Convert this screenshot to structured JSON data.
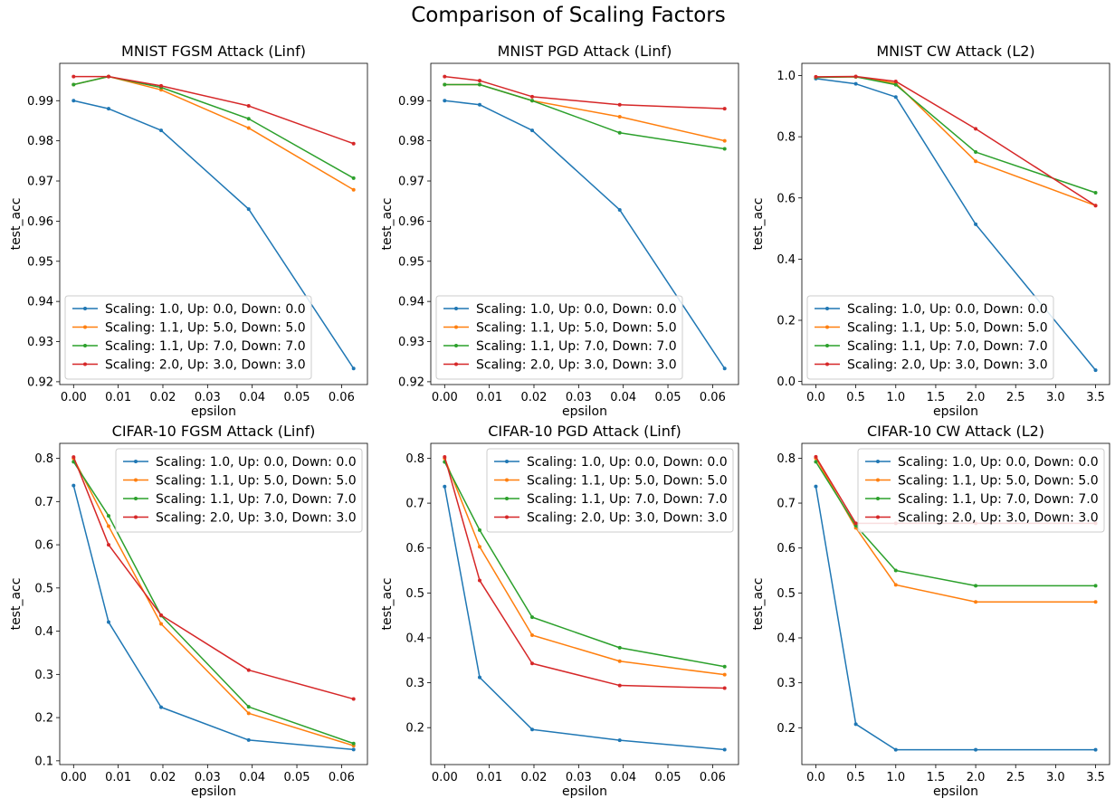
{
  "figure": {
    "title": "Comparison of Scaling Factors"
  },
  "colors": {
    "series": [
      "#1f77b4",
      "#ff7f0e",
      "#2ca02c",
      "#d62728"
    ]
  },
  "chart_data": [
    {
      "type": "line",
      "title": "MNIST FGSM Attack (Linf)",
      "xlabel": "epsilon",
      "ylabel": "test_acc",
      "x": [
        0,
        0.00784,
        0.0196,
        0.0392,
        0.0627
      ],
      "xlim": [
        -0.0031,
        0.0658
      ],
      "ylim": [
        0.9193,
        0.9993
      ],
      "xticks": [
        0,
        0.01,
        0.02,
        0.03,
        0.04,
        0.05,
        0.06
      ],
      "xtick_labels": [
        "0.00",
        "0.01",
        "0.02",
        "0.03",
        "0.04",
        "0.05",
        "0.06"
      ],
      "yticks": [
        0.92,
        0.93,
        0.94,
        0.95,
        0.96,
        0.97,
        0.98,
        0.99
      ],
      "ytick_labels": [
        "0.92",
        "0.93",
        "0.94",
        "0.95",
        "0.96",
        "0.97",
        "0.98",
        "0.99"
      ],
      "legend": "lower-left",
      "series": [
        {
          "name": "Scaling: 1.0, Up: 0.0, Down: 0.0",
          "values": [
            0.99,
            0.988,
            0.9826,
            0.963,
            0.9233
          ]
        },
        {
          "name": "Scaling: 1.1, Up: 5.0, Down: 5.0",
          "values": [
            0.994,
            0.996,
            0.9927,
            0.9832,
            0.9678
          ]
        },
        {
          "name": "Scaling: 1.1, Up: 7.0, Down: 7.0",
          "values": [
            0.994,
            0.996,
            0.9933,
            0.9855,
            0.9707
          ]
        },
        {
          "name": "Scaling: 2.0, Up: 3.0, Down: 3.0",
          "values": [
            0.996,
            0.996,
            0.9937,
            0.9887,
            0.9793
          ]
        }
      ]
    },
    {
      "type": "line",
      "title": "MNIST PGD Attack (Linf)",
      "xlabel": "epsilon",
      "ylabel": "test_acc",
      "x": [
        0,
        0.00784,
        0.0196,
        0.0392,
        0.0627
      ],
      "xlim": [
        -0.0031,
        0.0658
      ],
      "ylim": [
        0.9193,
        0.9993
      ],
      "xticks": [
        0,
        0.01,
        0.02,
        0.03,
        0.04,
        0.05,
        0.06
      ],
      "xtick_labels": [
        "0.00",
        "0.01",
        "0.02",
        "0.03",
        "0.04",
        "0.05",
        "0.06"
      ],
      "yticks": [
        0.92,
        0.93,
        0.94,
        0.95,
        0.96,
        0.97,
        0.98,
        0.99
      ],
      "ytick_labels": [
        "0.92",
        "0.93",
        "0.94",
        "0.95",
        "0.96",
        "0.97",
        "0.98",
        "0.99"
      ],
      "legend": "lower-left",
      "series": [
        {
          "name": "Scaling: 1.0, Up: 0.0, Down: 0.0",
          "values": [
            0.99,
            0.989,
            0.9826,
            0.9628,
            0.9233
          ]
        },
        {
          "name": "Scaling: 1.1, Up: 5.0, Down: 5.0",
          "values": [
            0.994,
            0.994,
            0.99,
            0.986,
            0.98
          ]
        },
        {
          "name": "Scaling: 1.1, Up: 7.0, Down: 7.0",
          "values": [
            0.994,
            0.994,
            0.99,
            0.982,
            0.978
          ]
        },
        {
          "name": "Scaling: 2.0, Up: 3.0, Down: 3.0",
          "values": [
            0.996,
            0.995,
            0.991,
            0.989,
            0.988
          ]
        }
      ]
    },
    {
      "type": "line",
      "title": "MNIST CW Attack (L2)",
      "xlabel": "epsilon",
      "ylabel": "test_acc",
      "x": [
        0,
        0.5,
        1.0,
        2.0,
        3.5
      ],
      "xlim": [
        -0.175,
        3.675
      ],
      "ylim": [
        -0.01,
        1.04
      ],
      "xticks": [
        0,
        0.5,
        1.0,
        1.5,
        2.0,
        2.5,
        3.0,
        3.5
      ],
      "xtick_labels": [
        "0.0",
        "0.5",
        "1.0",
        "1.5",
        "2.0",
        "2.5",
        "3.0",
        "3.5"
      ],
      "yticks": [
        0,
        0.2,
        0.4,
        0.6,
        0.8,
        1.0
      ],
      "ytick_labels": [
        "0.0",
        "0.2",
        "0.4",
        "0.6",
        "0.8",
        "1.0"
      ],
      "legend": "lower-left",
      "series": [
        {
          "name": "Scaling: 1.0, Up: 0.0, Down: 0.0",
          "values": [
            0.99,
            0.973,
            0.93,
            0.514,
            0.037
          ]
        },
        {
          "name": "Scaling: 1.1, Up: 5.0, Down: 5.0",
          "values": [
            0.994,
            0.996,
            0.975,
            0.72,
            0.575
          ]
        },
        {
          "name": "Scaling: 1.1, Up: 7.0, Down: 7.0",
          "values": [
            0.994,
            0.996,
            0.97,
            0.75,
            0.617
          ]
        },
        {
          "name": "Scaling: 2.0, Up: 3.0, Down: 3.0",
          "values": [
            0.996,
            0.997,
            0.981,
            0.826,
            0.575
          ]
        }
      ]
    },
    {
      "type": "line",
      "title": "CIFAR-10 FGSM Attack (Linf)",
      "xlabel": "epsilon",
      "ylabel": "test_acc",
      "x": [
        0,
        0.00784,
        0.0196,
        0.0392,
        0.0627
      ],
      "xlim": [
        -0.0031,
        0.0658
      ],
      "ylim": [
        0.0913,
        0.8347
      ],
      "xticks": [
        0,
        0.01,
        0.02,
        0.03,
        0.04,
        0.05,
        0.06
      ],
      "xtick_labels": [
        "0.00",
        "0.01",
        "0.02",
        "0.03",
        "0.04",
        "0.05",
        "0.06"
      ],
      "yticks": [
        0.1,
        0.2,
        0.3,
        0.4,
        0.5,
        0.6,
        0.7,
        0.8
      ],
      "ytick_labels": [
        "0.1",
        "0.2",
        "0.3",
        "0.4",
        "0.5",
        "0.6",
        "0.7",
        "0.8"
      ],
      "legend": "upper-right",
      "series": [
        {
          "name": "Scaling: 1.0, Up: 0.0, Down: 0.0",
          "values": [
            0.737,
            0.421,
            0.224,
            0.148,
            0.126
          ]
        },
        {
          "name": "Scaling: 1.1, Up: 5.0, Down: 5.0",
          "values": [
            0.8,
            0.643,
            0.417,
            0.21,
            0.135
          ]
        },
        {
          "name": "Scaling: 1.1, Up: 7.0, Down: 7.0",
          "values": [
            0.792,
            0.667,
            0.436,
            0.225,
            0.14
          ]
        },
        {
          "name": "Scaling: 2.0, Up: 3.0, Down: 3.0",
          "values": [
            0.803,
            0.6,
            0.437,
            0.31,
            0.243
          ]
        }
      ]
    },
    {
      "type": "line",
      "title": "CIFAR-10 PGD Attack (Linf)",
      "xlabel": "epsilon",
      "ylabel": "test_acc",
      "x": [
        0,
        0.00784,
        0.0196,
        0.0392,
        0.0627
      ],
      "xlim": [
        -0.0031,
        0.0658
      ],
      "ylim": [
        0.1178,
        0.8332
      ],
      "xticks": [
        0,
        0.01,
        0.02,
        0.03,
        0.04,
        0.05,
        0.06
      ],
      "xtick_labels": [
        "0.00",
        "0.01",
        "0.02",
        "0.03",
        "0.04",
        "0.05",
        "0.06"
      ],
      "yticks": [
        0.2,
        0.3,
        0.4,
        0.5,
        0.6,
        0.7,
        0.8
      ],
      "ytick_labels": [
        "0.2",
        "0.3",
        "0.4",
        "0.5",
        "0.6",
        "0.7",
        "0.8"
      ],
      "legend": "upper-right",
      "series": [
        {
          "name": "Scaling: 1.0, Up: 0.0, Down: 0.0",
          "values": [
            0.737,
            0.312,
            0.196,
            0.172,
            0.151
          ]
        },
        {
          "name": "Scaling: 1.1, Up: 5.0, Down: 5.0",
          "values": [
            0.8,
            0.603,
            0.406,
            0.348,
            0.318
          ]
        },
        {
          "name": "Scaling: 1.1, Up: 7.0, Down: 7.0",
          "values": [
            0.792,
            0.64,
            0.446,
            0.378,
            0.336
          ]
        },
        {
          "name": "Scaling: 2.0, Up: 3.0, Down: 3.0",
          "values": [
            0.803,
            0.528,
            0.343,
            0.294,
            0.288
          ]
        }
      ]
    },
    {
      "type": "line",
      "title": "CIFAR-10 CW Attack (L2)",
      "xlabel": "epsilon",
      "ylabel": "test_acc",
      "x": [
        0,
        0.5,
        1.0,
        2.0,
        3.5
      ],
      "xlim": [
        -0.175,
        3.675
      ],
      "ylim": [
        0.118,
        0.833
      ],
      "xticks": [
        0,
        0.5,
        1.0,
        1.5,
        2.0,
        2.5,
        3.0,
        3.5
      ],
      "xtick_labels": [
        "0.0",
        "0.5",
        "1.0",
        "1.5",
        "2.0",
        "2.5",
        "3.0",
        "3.5"
      ],
      "yticks": [
        0.2,
        0.3,
        0.4,
        0.5,
        0.6,
        0.7,
        0.8
      ],
      "ytick_labels": [
        "0.2",
        "0.3",
        "0.4",
        "0.5",
        "0.6",
        "0.7",
        "0.8"
      ],
      "legend": "upper-right",
      "series": [
        {
          "name": "Scaling: 1.0, Up: 0.0, Down: 0.0",
          "values": [
            0.737,
            0.208,
            0.151,
            0.151,
            0.151
          ]
        },
        {
          "name": "Scaling: 1.1, Up: 5.0, Down: 5.0",
          "values": [
            0.8,
            0.645,
            0.518,
            0.48,
            0.48
          ]
        },
        {
          "name": "Scaling: 1.1, Up: 7.0, Down: 7.0",
          "values": [
            0.792,
            0.65,
            0.55,
            0.516,
            0.516
          ]
        },
        {
          "name": "Scaling: 2.0, Up: 3.0, Down: 3.0",
          "values": [
            0.803,
            0.655,
            0.655,
            0.655,
            0.655
          ]
        }
      ]
    }
  ]
}
